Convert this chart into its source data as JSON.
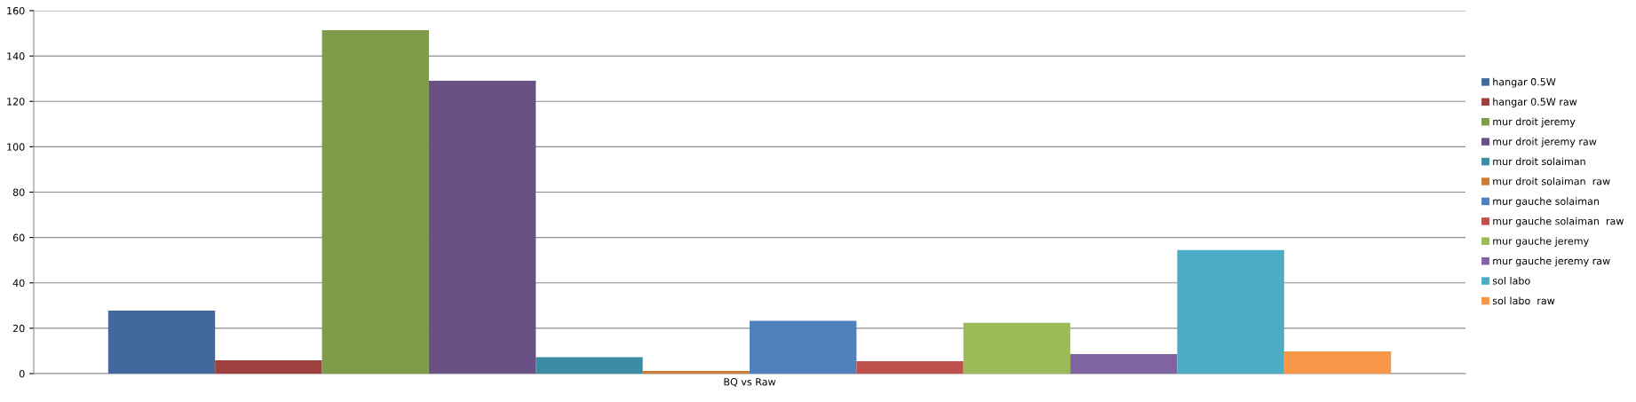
{
  "chart_data": {
    "type": "bar",
    "categories": [
      "BQ vs Raw"
    ],
    "series": [
      {
        "name": "hangar 0.5W",
        "color": "#41699b",
        "values": [
          27.8
        ]
      },
      {
        "name": "hangar 0.5W raw",
        "color": "#9e413e",
        "values": [
          5.9
        ]
      },
      {
        "name": "mur droit jeremy",
        "color": "#7f9a48",
        "values": [
          151.4
        ]
      },
      {
        "name": "mur droit jeremy raw",
        "color": "#695185",
        "values": [
          129.1
        ]
      },
      {
        "name": "mur droit solaiman",
        "color": "#3c8da3",
        "values": [
          7.2
        ]
      },
      {
        "name": "mur droit solaiman  raw",
        "color": "#cc7b38",
        "values": [
          1.2
        ]
      },
      {
        "name": "mur gauche solaiman",
        "color": "#4f81bd",
        "values": [
          23.3
        ]
      },
      {
        "name": "mur gauche solaiman  raw",
        "color": "#c0504d",
        "values": [
          5.5
        ]
      },
      {
        "name": "mur gauche jeremy",
        "color": "#9bbb59",
        "values": [
          22.4
        ]
      },
      {
        "name": "mur gauche jeremy raw",
        "color": "#8064a2",
        "values": [
          8.6
        ]
      },
      {
        "name": "sol labo",
        "color": "#4bacc6",
        "values": [
          54.5
        ]
      },
      {
        "name": "sol labo  raw",
        "color": "#f79646",
        "values": [
          9.8
        ]
      }
    ],
    "ylim": [
      0,
      160
    ],
    "yticks": [
      0,
      20,
      40,
      60,
      80,
      100,
      120,
      140,
      160
    ],
    "grid": "y",
    "legend": "right"
  }
}
